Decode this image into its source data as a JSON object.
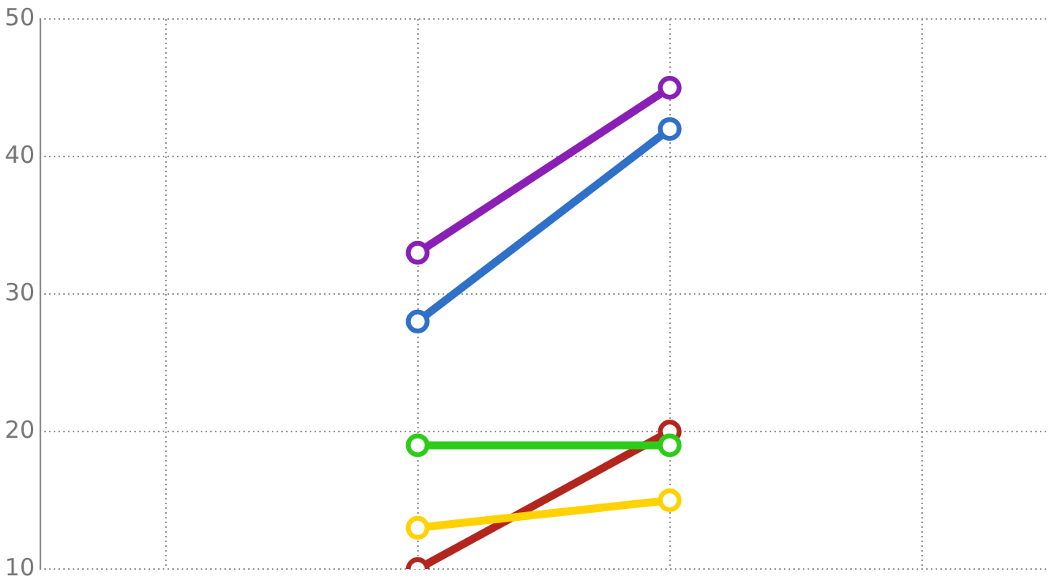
{
  "chart_data": {
    "type": "line",
    "categories": [
      null,
      null,
      null,
      null
    ],
    "series": [
      {
        "color": "#8a1fb5",
        "values": [
          null,
          33,
          45,
          null
        ]
      },
      {
        "color": "#2f70c8",
        "values": [
          null,
          28,
          42,
          null
        ]
      },
      {
        "color": "#2ecc1a",
        "values": [
          null,
          19,
          19,
          null
        ]
      },
      {
        "color": "#ffd200",
        "values": [
          null,
          13,
          15,
          null
        ]
      },
      {
        "color": "#b3261e",
        "values": [
          null,
          10,
          20,
          null
        ]
      }
    ],
    "ylim": [
      10,
      50
    ],
    "yticks": [
      10,
      20,
      30,
      40,
      50
    ],
    "grid": true,
    "legend": false,
    "marker": "circle",
    "line_style": "solid",
    "tick_labels": "y"
  }
}
